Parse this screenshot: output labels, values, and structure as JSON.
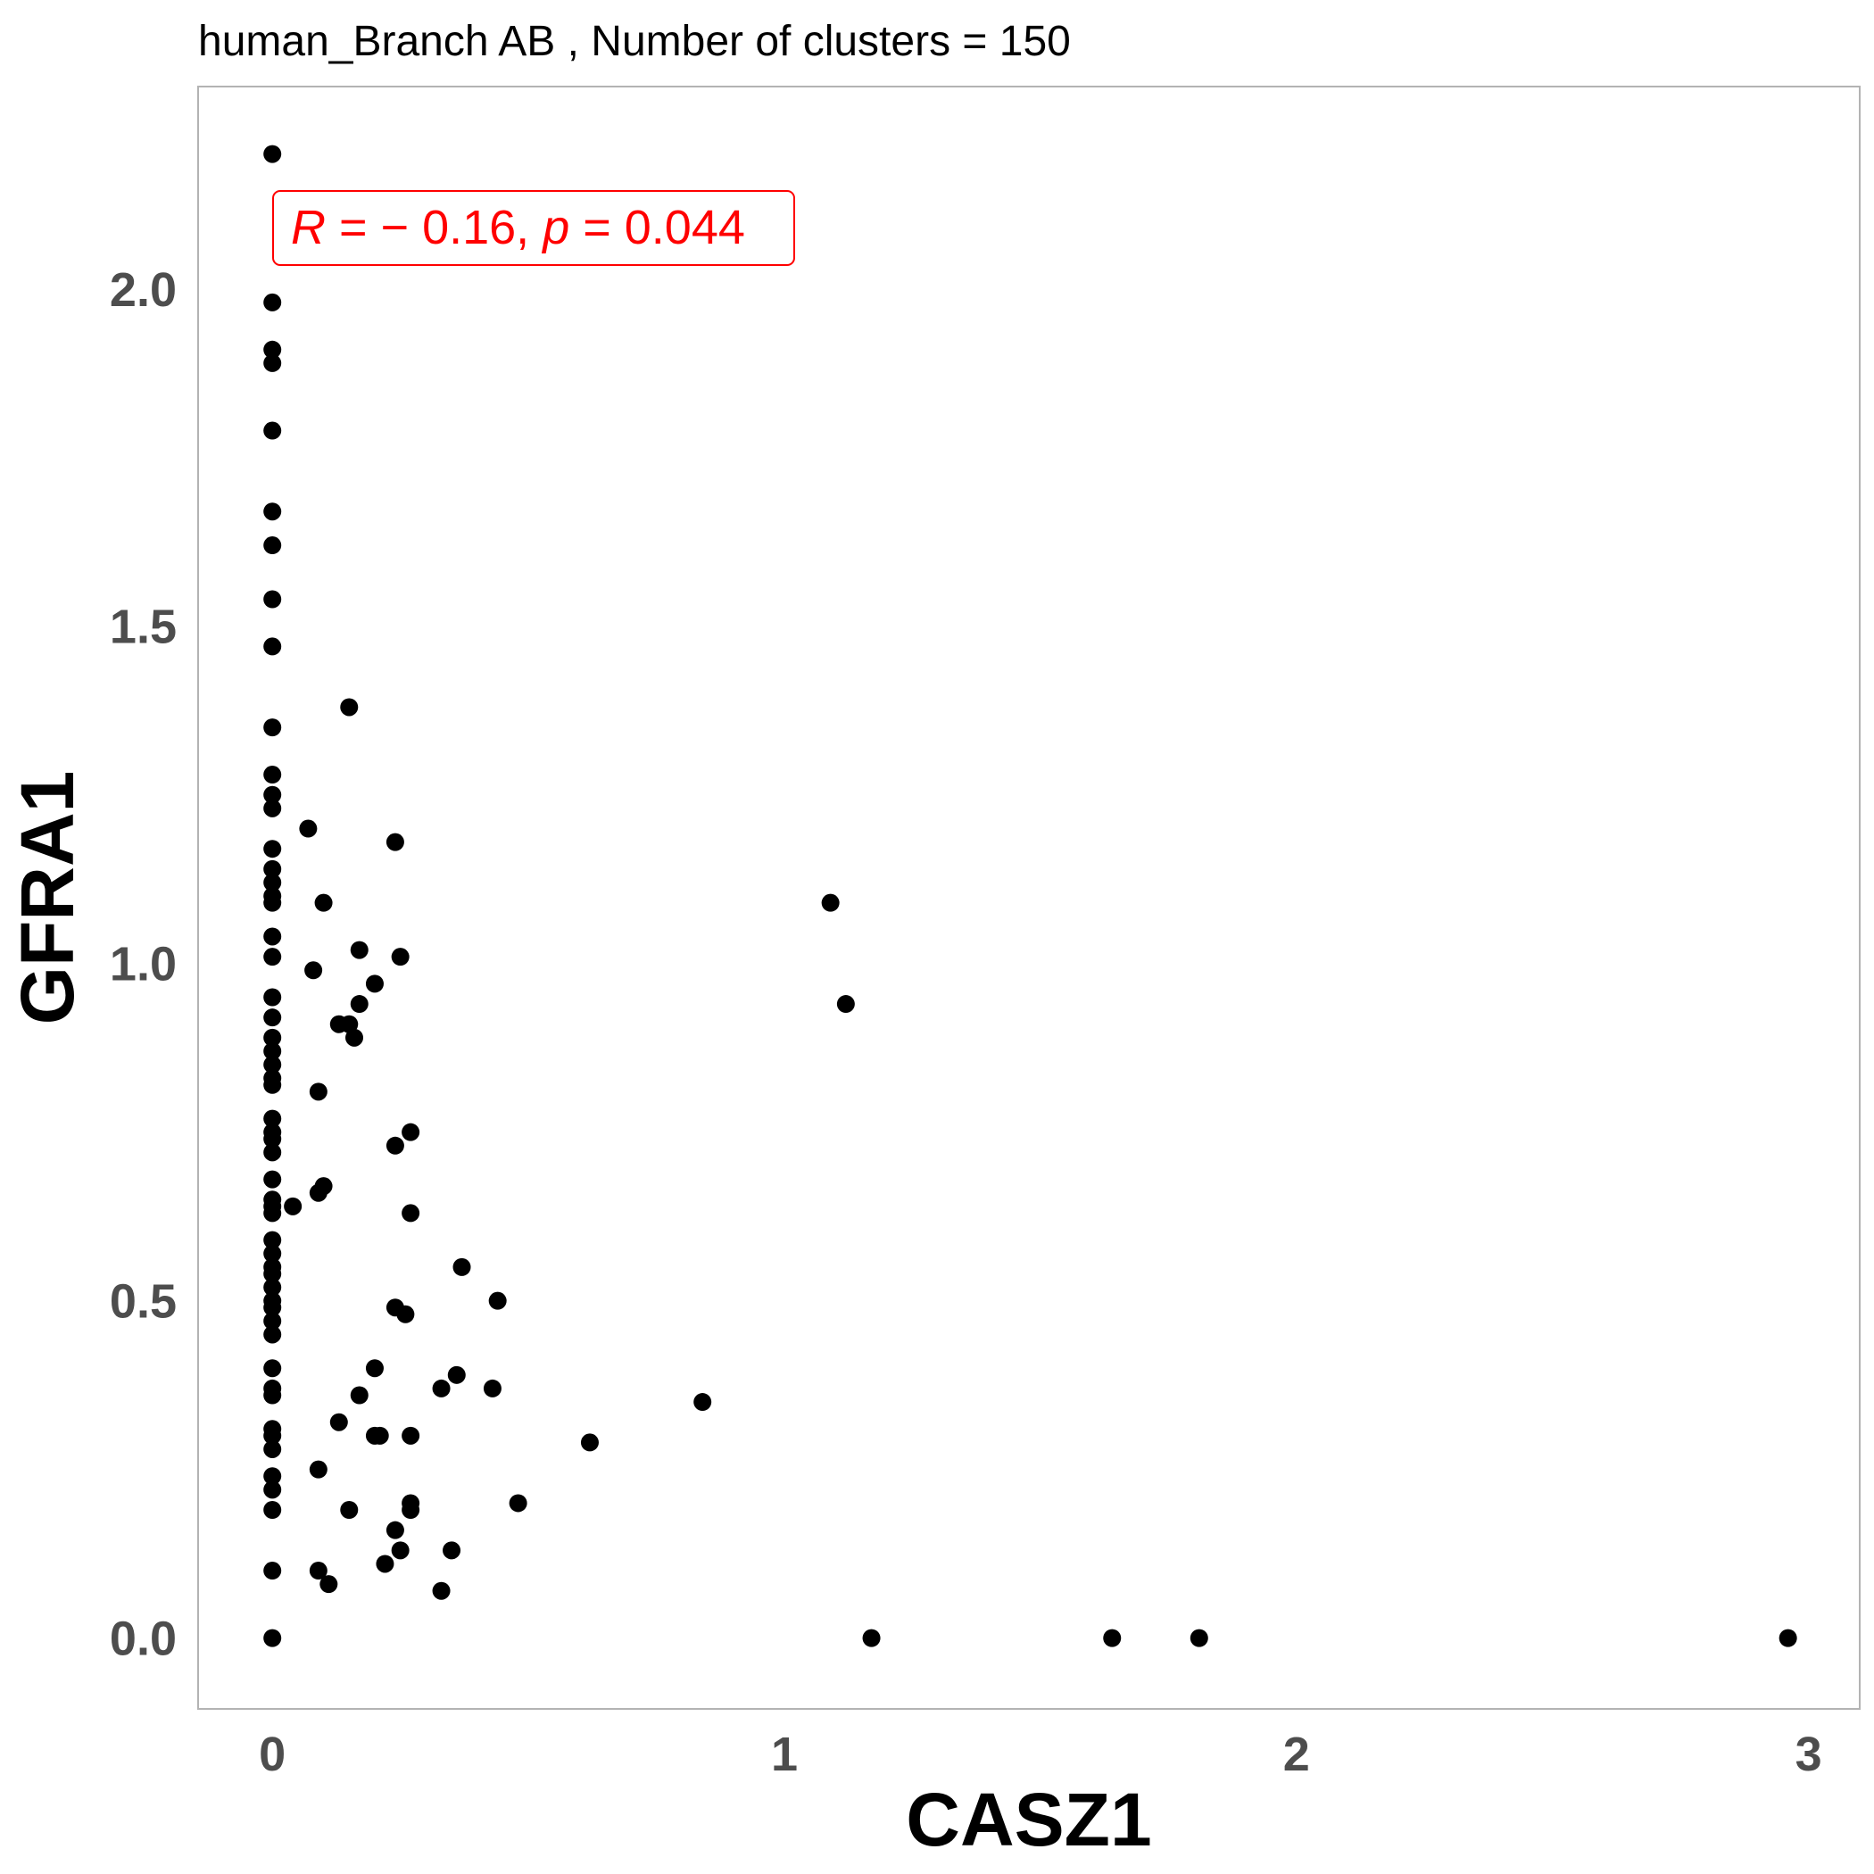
{
  "chart_data": {
    "type": "scatter",
    "title": "human_Branch AB , Number of clusters =  150",
    "xlabel": "CASZ1",
    "ylabel": "GFRA1",
    "xlim": [
      -0.145,
      3.1
    ],
    "ylim": [
      -0.105,
      2.3
    ],
    "xticks": [
      0,
      1,
      2,
      3
    ],
    "xtick_labels": [
      "0",
      "1",
      "2",
      "3"
    ],
    "yticks": [
      0.0,
      0.5,
      1.0,
      1.5,
      2.0
    ],
    "ytick_labels": [
      "0.0",
      "0.5",
      "1.0",
      "1.5",
      "2.0"
    ],
    "grid": false,
    "point_color": "#000000",
    "annotation": {
      "color": "#ff0000",
      "r_symbol": "R",
      "r_text": " = − 0.16, ",
      "p_symbol": "p",
      "p_text": " = 0.044"
    },
    "points": [
      {
        "x": 0,
        "y": 2.2
      },
      {
        "x": 0,
        "y": 1.98
      },
      {
        "x": 0,
        "y": 1.91
      },
      {
        "x": 0,
        "y": 1.89
      },
      {
        "x": 0,
        "y": 1.79
      },
      {
        "x": 0,
        "y": 1.67
      },
      {
        "x": 0,
        "y": 1.62
      },
      {
        "x": 0,
        "y": 1.54
      },
      {
        "x": 0,
        "y": 1.47
      },
      {
        "x": 0,
        "y": 1.35
      },
      {
        "x": 0,
        "y": 1.28
      },
      {
        "x": 0,
        "y": 1.25
      },
      {
        "x": 0,
        "y": 1.23
      },
      {
        "x": 0,
        "y": 1.17
      },
      {
        "x": 0,
        "y": 1.14
      },
      {
        "x": 0,
        "y": 1.12
      },
      {
        "x": 0,
        "y": 1.1
      },
      {
        "x": 0,
        "y": 1.09
      },
      {
        "x": 0,
        "y": 1.04
      },
      {
        "x": 0,
        "y": 1.01
      },
      {
        "x": 0,
        "y": 0.95
      },
      {
        "x": 0,
        "y": 0.92
      },
      {
        "x": 0,
        "y": 0.89
      },
      {
        "x": 0,
        "y": 0.87
      },
      {
        "x": 0,
        "y": 0.85
      },
      {
        "x": 0,
        "y": 0.83
      },
      {
        "x": 0,
        "y": 0.82
      },
      {
        "x": 0,
        "y": 0.77
      },
      {
        "x": 0,
        "y": 0.75
      },
      {
        "x": 0,
        "y": 0.74
      },
      {
        "x": 0,
        "y": 0.72
      },
      {
        "x": 0,
        "y": 0.68
      },
      {
        "x": 0,
        "y": 0.65
      },
      {
        "x": 0,
        "y": 0.64
      },
      {
        "x": 0,
        "y": 0.63
      },
      {
        "x": 0,
        "y": 0.59
      },
      {
        "x": 0,
        "y": 0.57
      },
      {
        "x": 0,
        "y": 0.55
      },
      {
        "x": 0,
        "y": 0.54
      },
      {
        "x": 0,
        "y": 0.52
      },
      {
        "x": 0,
        "y": 0.5
      },
      {
        "x": 0,
        "y": 0.49
      },
      {
        "x": 0,
        "y": 0.47
      },
      {
        "x": 0,
        "y": 0.45
      },
      {
        "x": 0,
        "y": 0.4
      },
      {
        "x": 0,
        "y": 0.37
      },
      {
        "x": 0,
        "y": 0.36
      },
      {
        "x": 0,
        "y": 0.31
      },
      {
        "x": 0,
        "y": 0.3
      },
      {
        "x": 0,
        "y": 0.28
      },
      {
        "x": 0,
        "y": 0.24
      },
      {
        "x": 0,
        "y": 0.22
      },
      {
        "x": 0,
        "y": 0.19
      },
      {
        "x": 0,
        "y": 0.1
      },
      {
        "x": 0,
        "y": 0.0
      },
      {
        "x": 0.15,
        "y": 1.38
      },
      {
        "x": 0.07,
        "y": 1.2
      },
      {
        "x": 0.24,
        "y": 1.18
      },
      {
        "x": 0.1,
        "y": 1.09
      },
      {
        "x": 0.17,
        "y": 1.02
      },
      {
        "x": 0.25,
        "y": 1.01
      },
      {
        "x": 0.08,
        "y": 0.99
      },
      {
        "x": 0.2,
        "y": 0.97
      },
      {
        "x": 0.17,
        "y": 0.94
      },
      {
        "x": 0.13,
        "y": 0.91
      },
      {
        "x": 0.15,
        "y": 0.91
      },
      {
        "x": 0.16,
        "y": 0.89
      },
      {
        "x": 0.09,
        "y": 0.81
      },
      {
        "x": 0.27,
        "y": 0.75
      },
      {
        "x": 0.24,
        "y": 0.73
      },
      {
        "x": 0.1,
        "y": 0.67
      },
      {
        "x": 0.09,
        "y": 0.66
      },
      {
        "x": 0.04,
        "y": 0.64
      },
      {
        "x": 0.27,
        "y": 0.63
      },
      {
        "x": 0.37,
        "y": 0.55
      },
      {
        "x": 0.44,
        "y": 0.5
      },
      {
        "x": 0.24,
        "y": 0.49
      },
      {
        "x": 0.26,
        "y": 0.48
      },
      {
        "x": 0.2,
        "y": 0.4
      },
      {
        "x": 0.36,
        "y": 0.39
      },
      {
        "x": 0.33,
        "y": 0.37
      },
      {
        "x": 0.43,
        "y": 0.37
      },
      {
        "x": 0.17,
        "y": 0.36
      },
      {
        "x": 0.13,
        "y": 0.32
      },
      {
        "x": 0.2,
        "y": 0.3
      },
      {
        "x": 0.21,
        "y": 0.3
      },
      {
        "x": 0.27,
        "y": 0.3
      },
      {
        "x": 0.09,
        "y": 0.25
      },
      {
        "x": 0.27,
        "y": 0.2
      },
      {
        "x": 0.48,
        "y": 0.2
      },
      {
        "x": 0.15,
        "y": 0.19
      },
      {
        "x": 0.27,
        "y": 0.19
      },
      {
        "x": 0.24,
        "y": 0.16
      },
      {
        "x": 0.25,
        "y": 0.13
      },
      {
        "x": 0.35,
        "y": 0.13
      },
      {
        "x": 0.22,
        "y": 0.11
      },
      {
        "x": 0.09,
        "y": 0.1
      },
      {
        "x": 0.11,
        "y": 0.08
      },
      {
        "x": 0.33,
        "y": 0.07
      },
      {
        "x": 0.84,
        "y": 0.35
      },
      {
        "x": 0.62,
        "y": 0.29
      },
      {
        "x": 1.09,
        "y": 1.09
      },
      {
        "x": 1.12,
        "y": 0.94
      },
      {
        "x": 1.17,
        "y": 0.0
      },
      {
        "x": 1.64,
        "y": 0.0
      },
      {
        "x": 1.81,
        "y": 0.0
      },
      {
        "x": 2.96,
        "y": 0.0
      }
    ]
  }
}
